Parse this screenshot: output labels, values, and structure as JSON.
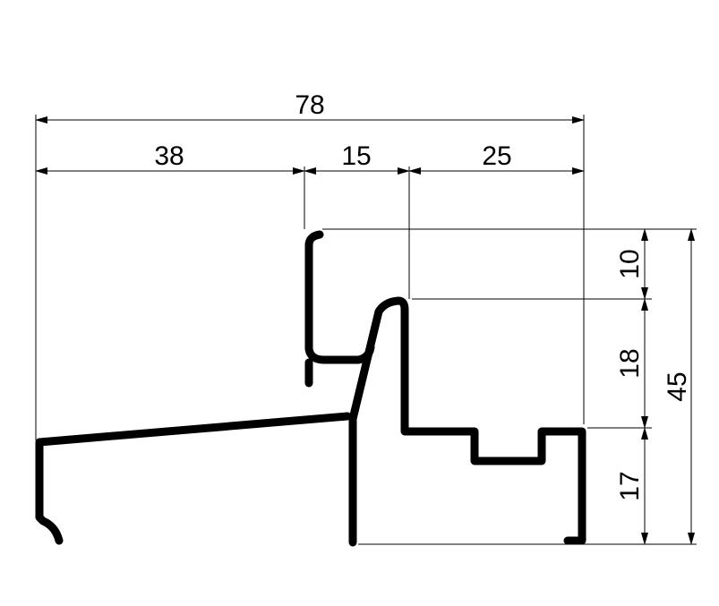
{
  "drawing": {
    "horizontal_dimensions": {
      "overall": "78",
      "left": "38",
      "middle": "15",
      "right": "25"
    },
    "vertical_dimensions": {
      "top": "10",
      "middle": "18",
      "bottom": "17",
      "overall": "45"
    },
    "colors": {
      "line": "#000000",
      "background": "#ffffff"
    }
  }
}
